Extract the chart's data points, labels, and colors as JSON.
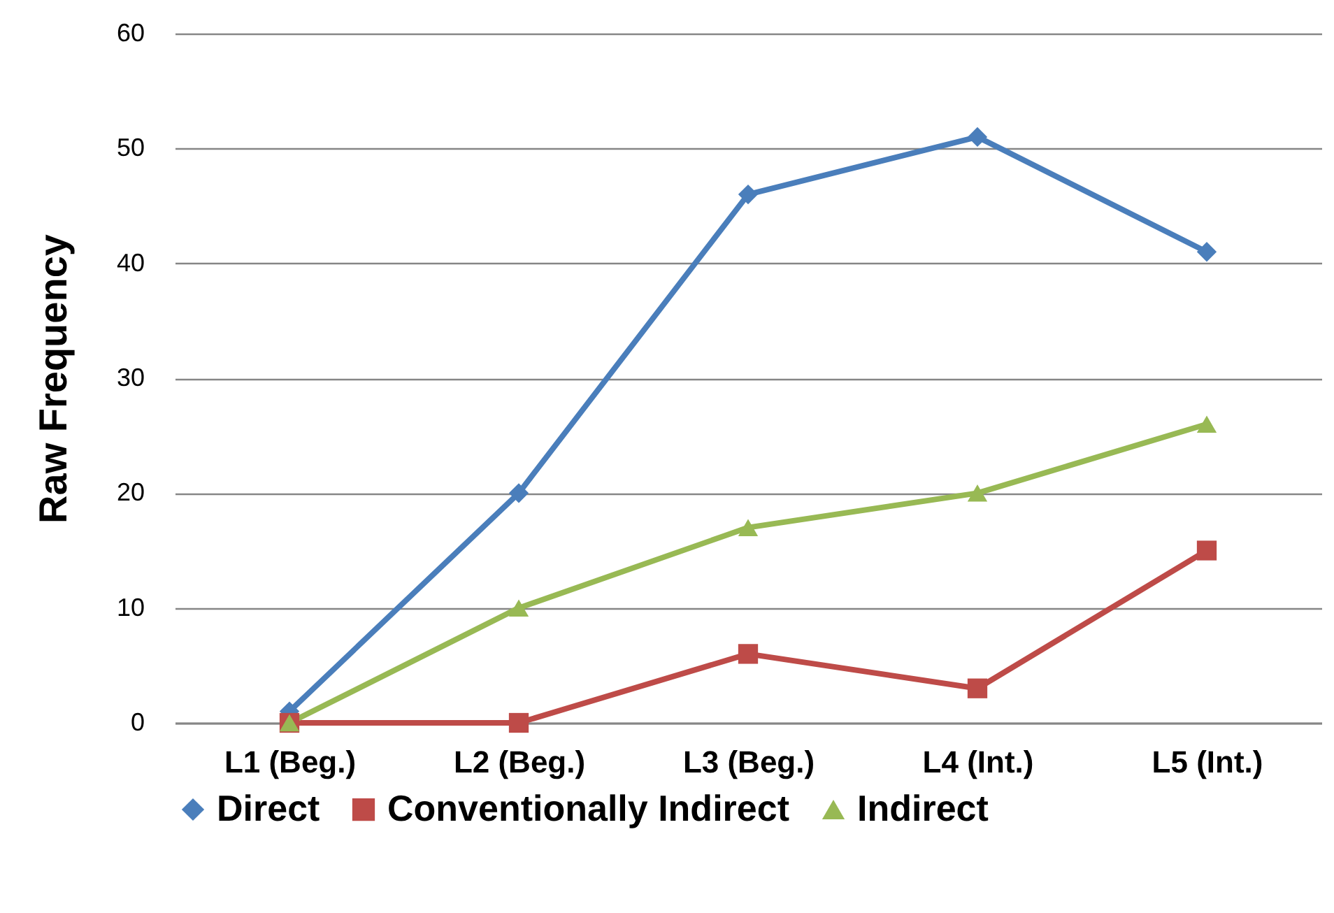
{
  "chart_data": {
    "type": "line",
    "ylabel": "Raw  Frequency",
    "categories": [
      "L1 (Beg.)",
      "L2 (Beg.)",
      "L3 (Beg.)",
      "L4 (Int.)",
      "L5 (Int.)"
    ],
    "series": [
      {
        "name": "Direct",
        "color": "#4a7ebb",
        "marker": "diamond",
        "values": [
          1,
          20,
          46,
          51,
          41
        ]
      },
      {
        "name": "Conventionally Indirect",
        "color": "#be4b48",
        "marker": "square",
        "values": [
          0,
          0,
          6,
          3,
          15
        ]
      },
      {
        "name": "Indirect",
        "color": "#98b954",
        "marker": "triangle",
        "values": [
          0,
          10,
          17,
          20,
          26
        ]
      }
    ],
    "ylim": [
      0,
      60
    ],
    "yticks": [
      0,
      10,
      20,
      30,
      40,
      50,
      60
    ],
    "grid": "y",
    "legend": "bottom",
    "line_style": "solid"
  }
}
